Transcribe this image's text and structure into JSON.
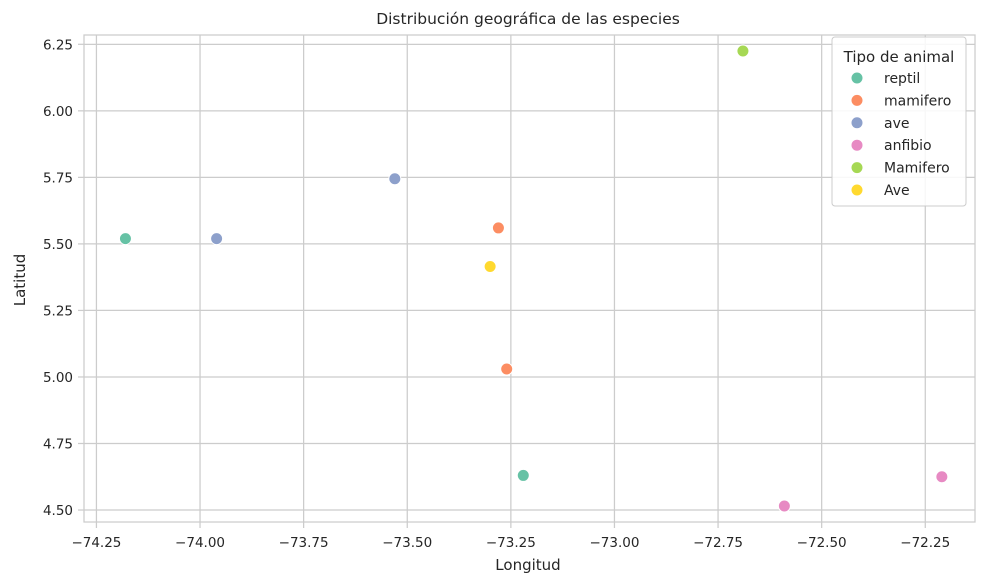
{
  "chart_data": {
    "type": "scatter",
    "title": "Distribución geográfica de las especies",
    "xlabel": "Longitud",
    "ylabel": "Latitud",
    "xlim": [
      -74.28,
      -72.13
    ],
    "ylim": [
      4.455,
      6.285
    ],
    "x_ticks": [
      -74.25,
      -74.0,
      -73.75,
      -73.5,
      -73.25,
      -73.0,
      -72.75,
      -72.5,
      -72.25
    ],
    "x_tick_labels": [
      "−74.25",
      "−74.00",
      "−73.75",
      "−73.50",
      "−73.25",
      "−73.00",
      "−72.75",
      "−72.50",
      "−72.25"
    ],
    "y_ticks": [
      4.5,
      4.75,
      5.0,
      5.25,
      5.5,
      5.75,
      6.0,
      6.25
    ],
    "y_tick_labels": [
      "4.50",
      "4.75",
      "5.00",
      "5.25",
      "5.50",
      "5.75",
      "6.00",
      "6.25"
    ],
    "grid": true,
    "legend": {
      "title": "Tipo de animal",
      "position": "top-right"
    },
    "series": [
      {
        "name": "reptil",
        "color": "#66c2a5",
        "points": [
          {
            "x": -74.18,
            "y": 5.52
          },
          {
            "x": -73.22,
            "y": 4.63
          }
        ]
      },
      {
        "name": "mamifero",
        "color": "#fc8d62",
        "points": [
          {
            "x": -73.28,
            "y": 5.56
          },
          {
            "x": -73.26,
            "y": 5.03
          }
        ]
      },
      {
        "name": "ave",
        "color": "#8da0cb",
        "points": [
          {
            "x": -73.96,
            "y": 5.52
          },
          {
            "x": -73.53,
            "y": 5.745
          }
        ]
      },
      {
        "name": "anfibio",
        "color": "#e78ac3",
        "points": [
          {
            "x": -72.59,
            "y": 4.515
          },
          {
            "x": -72.21,
            "y": 4.625
          }
        ]
      },
      {
        "name": "Mamifero",
        "color": "#a6d854",
        "points": [
          {
            "x": -72.69,
            "y": 6.225
          }
        ]
      },
      {
        "name": "Ave",
        "color": "#ffd92f",
        "points": [
          {
            "x": -73.3,
            "y": 5.415
          }
        ]
      }
    ]
  }
}
